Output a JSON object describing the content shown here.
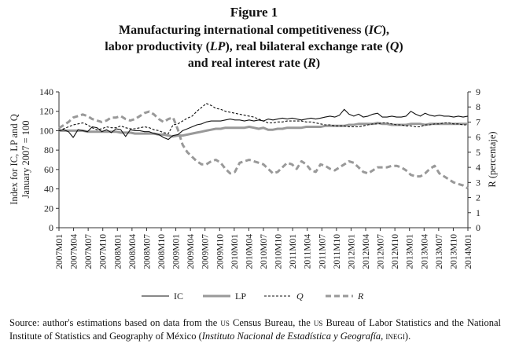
{
  "figure_label": "Figure 1",
  "title_lines": [
    [
      "Manufacturing international competitiveness (",
      "IC",
      "),"
    ],
    [
      "labor productivity (",
      "LP",
      "), real bilateral exchange rate (",
      "Q",
      ")"
    ],
    [
      "and real interest rate (",
      "R",
      ")"
    ]
  ],
  "source": {
    "prefix": "Source: author's estimations based on data from the ",
    "us1": "us",
    "mid1": " Census Bureau, the ",
    "us2": "us",
    "mid2": " Bureau of Labor Statistics and the National Institute of Statistics and Geography of México (",
    "italic": "Instituto Nacional de Estadística y Geografía",
    "sep": ", ",
    "inegi": "inegi",
    "end": ")."
  },
  "chart_data": {
    "type": "line",
    "ylabel": [
      "Index for IC, LP and Q",
      "January 2007 = 100"
    ],
    "y2label": "R (percentaje)",
    "ylim": [
      0,
      140
    ],
    "yticks": [
      0,
      20,
      40,
      60,
      80,
      100,
      120,
      140
    ],
    "y2lim": [
      0,
      9
    ],
    "y2ticks": [
      0,
      1,
      2,
      3,
      4,
      5,
      6,
      7,
      8,
      9
    ],
    "x_tick_labels": [
      "2007M01",
      "2007M04",
      "2007M07",
      "2007M10",
      "2008M01",
      "2008M04",
      "2008M07",
      "2008M10",
      "2009M01",
      "2009M04",
      "2009M07",
      "2009M10",
      "2010M01",
      "2010M04",
      "2010M07",
      "2010M10",
      "2011M01",
      "2011M04",
      "2011M07",
      "2011M10",
      "2012M01",
      "2012M04",
      "2012M07",
      "2012M10",
      "2013M01",
      "2013M04",
      "2013M07",
      "2013M10",
      "2014M01"
    ],
    "series": [
      {
        "name": "IC",
        "axis": "left",
        "style": "solid-thin",
        "color": "#111111",
        "values": [
          100,
          101,
          99,
          93,
          101,
          100,
          99,
          104,
          103,
          99,
          101,
          98,
          102,
          101,
          94,
          101,
          100,
          100,
          99,
          99,
          97,
          96,
          93,
          91,
          95,
          96,
          100,
          102,
          104,
          106,
          107,
          109,
          110,
          110,
          110,
          111,
          112,
          111,
          111,
          110,
          111,
          110,
          111,
          110,
          112,
          111,
          112,
          113,
          112,
          113,
          112,
          111,
          112,
          113,
          112,
          113,
          114,
          115,
          114,
          116,
          122,
          117,
          115,
          117,
          114,
          115,
          117,
          118,
          114,
          114,
          115,
          114,
          114,
          115,
          120,
          117,
          115,
          118,
          116,
          115,
          116,
          115,
          115,
          114,
          115,
          114,
          115
        ]
      },
      {
        "name": "LP",
        "axis": "left",
        "style": "solid-thick",
        "color": "#999999",
        "values": [
          100,
          100,
          100,
          100,
          100,
          100,
          99,
          99,
          99,
          99,
          99,
          99,
          99,
          98,
          98,
          98,
          97,
          97,
          97,
          97,
          97,
          96,
          96,
          95,
          94,
          95,
          95,
          96,
          97,
          98,
          99,
          100,
          101,
          102,
          102,
          103,
          103,
          103,
          103,
          103,
          104,
          103,
          102,
          103,
          101,
          101,
          102,
          102,
          103,
          103,
          103,
          103,
          104,
          104,
          104,
          104,
          105,
          105,
          105,
          105,
          105,
          106,
          106,
          107,
          107,
          107,
          107,
          108,
          107,
          107,
          106,
          106,
          106,
          106,
          107,
          107,
          107,
          106,
          107,
          107,
          107,
          107,
          107,
          107,
          107,
          107,
          107
        ]
      },
      {
        "name": "Q",
        "axis": "left",
        "style": "dashed-thin",
        "color": "#111111",
        "values": [
          100,
          102,
          104,
          106,
          107,
          108,
          106,
          103,
          101,
          102,
          104,
          103,
          103,
          105,
          103,
          102,
          102,
          103,
          104,
          103,
          101,
          100,
          98,
          97,
          106,
          107,
          110,
          113,
          115,
          120,
          124,
          128,
          126,
          123,
          122,
          120,
          119,
          118,
          117,
          116,
          115,
          114,
          112,
          110,
          108,
          108,
          109,
          109,
          110,
          110,
          110,
          110,
          109,
          109,
          108,
          107,
          106,
          106,
          105,
          105,
          105,
          104,
          104,
          104,
          105,
          106,
          107,
          107,
          108,
          108,
          107,
          106,
          106,
          105,
          105,
          104,
          104,
          106,
          106,
          107,
          107,
          108,
          108,
          107,
          107,
          106,
          106
        ]
      },
      {
        "name": "R",
        "axis": "right",
        "style": "dashed-thick",
        "color": "#999999",
        "values": [
          6.6,
          6.8,
          7.0,
          7.3,
          7.4,
          7.5,
          7.4,
          7.2,
          7.1,
          7.0,
          7.1,
          7.3,
          7.3,
          7.4,
          7.2,
          7.1,
          7.2,
          7.4,
          7.6,
          7.7,
          7.5,
          7.2,
          7.0,
          7.2,
          7.3,
          6.5,
          5.5,
          5.0,
          4.7,
          4.4,
          4.2,
          4.2,
          4.4,
          4.5,
          4.3,
          3.9,
          3.6,
          3.7,
          4.3,
          4.4,
          4.5,
          4.4,
          4.3,
          4.2,
          3.9,
          3.6,
          3.7,
          4.0,
          4.3,
          4.2,
          3.9,
          4.4,
          4.2,
          3.8,
          3.7,
          4.2,
          4.1,
          3.9,
          3.8,
          4.0,
          4.2,
          4.4,
          4.3,
          4.0,
          3.7,
          3.6,
          3.8,
          4.0,
          4.0,
          4.0,
          4.1,
          4.1,
          4.0,
          3.8,
          3.5,
          3.4,
          3.4,
          3.6,
          3.9,
          4.1,
          3.6,
          3.4,
          3.2,
          3.0,
          2.9,
          2.8,
          2.6
        ]
      }
    ],
    "legend_position": "bottom"
  }
}
